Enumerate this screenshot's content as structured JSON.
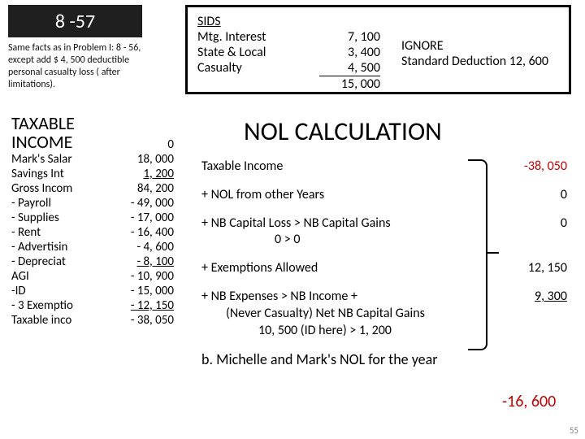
{
  "title": "8 -57",
  "subtext": "Same facts as in Problem I: 8 - 56, except add $ 4, 500 deductible personal casualty loss ( after limitations).",
  "left": {
    "hdr1": "TAXABLE",
    "hdr2": "INCOME",
    "rows": [
      {
        "l": "",
        "v": "0"
      },
      {
        "l": "Mark's Salar",
        "v": "18, 000"
      },
      {
        "l": "Savings Int",
        "v": "1, 200",
        "u": true
      },
      {
        "l": "Gross Incom",
        "v": "84, 200"
      },
      {
        "l": "-   Payroll",
        "v": "- 49, 000"
      },
      {
        "l": "-   Supplies",
        "v": "- 17, 000"
      },
      {
        "l": "-   Rent",
        "v": "- 16, 400"
      },
      {
        "l": "-   Advertisin",
        "v": "-   4, 600"
      },
      {
        "l": "-   Depreciat",
        "v": "-   8, 100",
        "u": true
      },
      {
        "l": "AGI",
        "v": "- 10, 900"
      },
      {
        "l": "-ID",
        "v": "- 15, 000"
      },
      {
        "l": "- 3 Exemptio",
        "v": "- 12, 150",
        "u": true
      },
      {
        "l": "Taxable inco",
        "v": "- 38, 050"
      }
    ]
  },
  "sids": {
    "title": "SIDS",
    "labels": [
      "Mtg. Interest",
      "State & Local",
      "Casualty"
    ],
    "vals": [
      "7, 100",
      "3, 400",
      "4, 500",
      "15, 000"
    ],
    "ignore": "IGNORE",
    "std": "Standard Deduction 12, 600"
  },
  "nol": {
    "title": "NOL CALCULATION",
    "lines": [
      {
        "l": "Taxable Income",
        "v": "-38, 050",
        "red": true
      },
      {
        "l": "+ NOL from other Years",
        "v": "0"
      },
      {
        "l": "+ NB Capital Loss > NB Capital Gains",
        "v": "0",
        "sub": "0          >          0"
      },
      {
        "l": "+ Exemptions Allowed",
        "v": "12, 150"
      },
      {
        "l": "+ NB Expenses > NB Income +",
        "v": "9, 300",
        "u": true,
        "sub1": "(Never Casualty)     Net NB Capital Gains",
        "sub2": "10, 500 (ID here) > 1, 200"
      }
    ],
    "final_l": "b. Michelle and Mark's NOL for the year",
    "final_v": "-16, 600"
  },
  "pagenum": "55"
}
